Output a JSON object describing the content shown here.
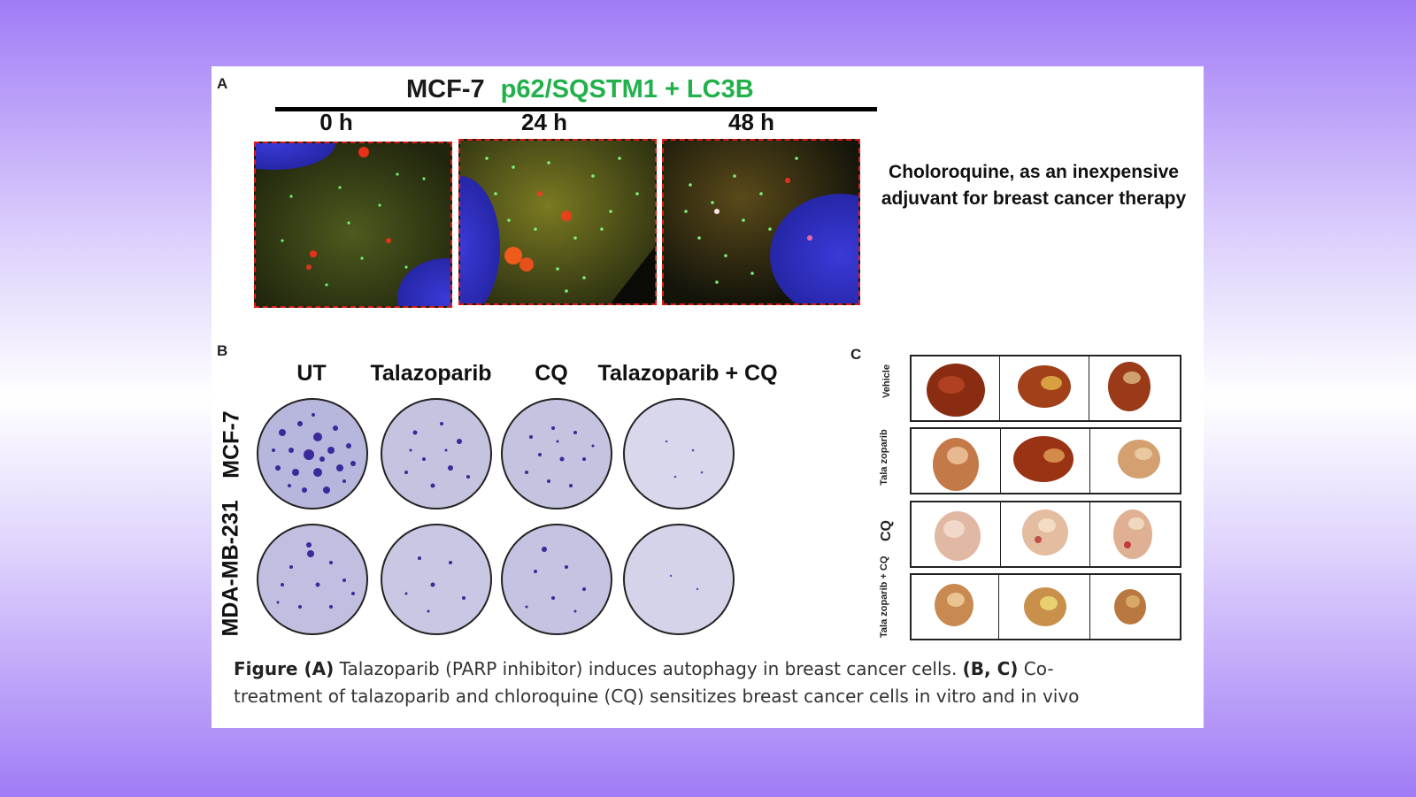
{
  "panel_a": {
    "letter": "A",
    "cell_line": "MCF-7",
    "markers": "p62/SQSTM1 + LC3B",
    "timepoints": [
      "0 h",
      "24 h",
      "48 h"
    ]
  },
  "side_note": {
    "line1": "Choloroquine, as an inexpensive",
    "line2": "adjuvant for breast cancer therapy"
  },
  "panel_b": {
    "letter": "B",
    "columns": [
      "UT",
      "Talazoparib",
      "CQ",
      "Talazoparib + CQ"
    ],
    "rows": [
      "MCF-7",
      "MDA-MB-231"
    ]
  },
  "panel_c": {
    "letter": "C",
    "rows": [
      "Vehicle",
      "Tala zoparib",
      "CQ",
      "Tala zoparib + CQ"
    ]
  },
  "caption": {
    "label_a": "Figure (A)",
    "text_a": " Talazoparib (PARP inhibitor) induces autophagy in breast cancer cells. ",
    "label_bc": "(B, C)",
    "text_bc1": " Co-",
    "text_bc2": "treatment  of talazoparib and chloroquine (CQ) sensitizes breast cancer cells in vitro and in vivo"
  },
  "colors": {
    "background_top": "#a07cf6",
    "marker_green": "#22b04a",
    "dashed_border": "#e01818",
    "crystal_violet": "#3a2a9a"
  }
}
